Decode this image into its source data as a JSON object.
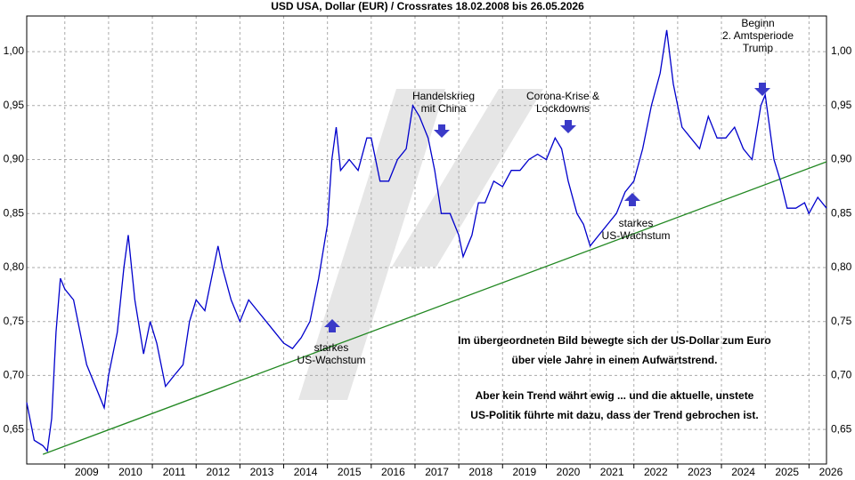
{
  "chart_data": {
    "type": "line",
    "title": "USD USA, Dollar (EUR) / Crossrates 18.02.2008 bis 26.05.2026",
    "xlim": [
      2008.13,
      2026.4
    ],
    "ylim": [
      0.618,
      1.033
    ],
    "xticks": [
      2009,
      2010,
      2011,
      2012,
      2013,
      2014,
      2015,
      2016,
      2017,
      2018,
      2019,
      2020,
      2021,
      2022,
      2023,
      2024,
      2025,
      2026
    ],
    "yticks": [
      {
        "value": 0.65,
        "label": "0,65"
      },
      {
        "value": 0.7,
        "label": "0,70"
      },
      {
        "value": 0.75,
        "label": "0,75"
      },
      {
        "value": 0.8,
        "label": "0,80"
      },
      {
        "value": 0.85,
        "label": "0,85"
      },
      {
        "value": 0.9,
        "label": "0,90"
      },
      {
        "value": 0.95,
        "label": "0,95"
      },
      {
        "value": 1.0,
        "label": "1,00"
      }
    ],
    "grid": true,
    "series": [
      {
        "color": "#0000cc",
        "x": [
          2008.13,
          2008.3,
          2008.5,
          2008.6,
          2008.7,
          2008.8,
          2008.9,
          2009.0,
          2009.2,
          2009.3,
          2009.5,
          2009.7,
          2009.9,
          2010.0,
          2010.2,
          2010.35,
          2010.45,
          2010.6,
          2010.8,
          2010.95,
          2011.1,
          2011.3,
          2011.5,
          2011.7,
          2011.85,
          2012.0,
          2012.2,
          2012.4,
          2012.5,
          2012.6,
          2012.8,
          2013.0,
          2013.2,
          2013.4,
          2013.6,
          2013.8,
          2014.0,
          2014.2,
          2014.4,
          2014.6,
          2014.8,
          2015.0,
          2015.1,
          2015.2,
          2015.3,
          2015.5,
          2015.7,
          2015.9,
          2016.0,
          2016.2,
          2016.4,
          2016.6,
          2016.8,
          2016.95,
          2017.1,
          2017.3,
          2017.45,
          2017.6,
          2017.8,
          2018.0,
          2018.1,
          2018.3,
          2018.45,
          2018.6,
          2018.8,
          2019.0,
          2019.2,
          2019.4,
          2019.6,
          2019.8,
          2020.0,
          2020.2,
          2020.35,
          2020.5,
          2020.7,
          2020.85,
          2021.0,
          2021.2,
          2021.4,
          2021.6,
          2021.8,
          2022.0,
          2022.2,
          2022.4,
          2022.6,
          2022.75,
          2022.9,
          2023.1,
          2023.3,
          2023.5,
          2023.7,
          2023.9,
          2024.1,
          2024.3,
          2024.5,
          2024.7,
          2024.9,
          2025.0,
          2025.1,
          2025.2,
          2025.35,
          2025.5,
          2025.7,
          2025.9,
          2026.0,
          2026.2,
          2026.4
        ],
        "values": [
          0.675,
          0.64,
          0.635,
          0.63,
          0.66,
          0.74,
          0.79,
          0.78,
          0.77,
          0.75,
          0.71,
          0.69,
          0.67,
          0.7,
          0.74,
          0.8,
          0.83,
          0.77,
          0.72,
          0.75,
          0.73,
          0.69,
          0.7,
          0.71,
          0.75,
          0.77,
          0.76,
          0.8,
          0.82,
          0.8,
          0.77,
          0.75,
          0.77,
          0.76,
          0.75,
          0.74,
          0.73,
          0.725,
          0.735,
          0.75,
          0.79,
          0.84,
          0.9,
          0.93,
          0.89,
          0.9,
          0.89,
          0.92,
          0.92,
          0.88,
          0.88,
          0.9,
          0.91,
          0.95,
          0.94,
          0.92,
          0.89,
          0.85,
          0.85,
          0.83,
          0.81,
          0.83,
          0.86,
          0.86,
          0.88,
          0.875,
          0.89,
          0.89,
          0.9,
          0.905,
          0.9,
          0.92,
          0.91,
          0.88,
          0.85,
          0.84,
          0.82,
          0.83,
          0.84,
          0.85,
          0.87,
          0.88,
          0.91,
          0.95,
          0.98,
          1.02,
          0.97,
          0.93,
          0.92,
          0.91,
          0.94,
          0.92,
          0.92,
          0.93,
          0.91,
          0.9,
          0.95,
          0.96,
          0.93,
          0.9,
          0.88,
          0.855,
          0.855,
          0.86,
          0.85,
          0.865,
          0.855
        ]
      }
    ],
    "trendline": {
      "color": "#228822",
      "x": [
        2008.5,
        2026.4
      ],
      "values": [
        0.627,
        0.898
      ]
    },
    "annotations": [
      {
        "lines": [
          "Handelskrieg",
          "mit China"
        ]
      },
      {
        "lines": [
          "Corona-Krise &",
          "Lockdowns"
        ]
      },
      {
        "lines": [
          "Beginn",
          "2. Amtsperiode",
          "Trump"
        ]
      },
      {
        "lines": [
          "starkes",
          "US-Wachstum"
        ]
      },
      {
        "lines": [
          "starkes",
          "US-Wachstum"
        ]
      }
    ],
    "text_block": [
      "Im übergeordneten Bild bewegte sich der US-Dollar zum Euro",
      "über viele Jahre in einem Aufwärtstrend.",
      "Aber kein Trend währt ewig ... und die aktuelle, unstete",
      "US-Politik führte mit dazu, dass der Trend gebrochen ist."
    ]
  }
}
